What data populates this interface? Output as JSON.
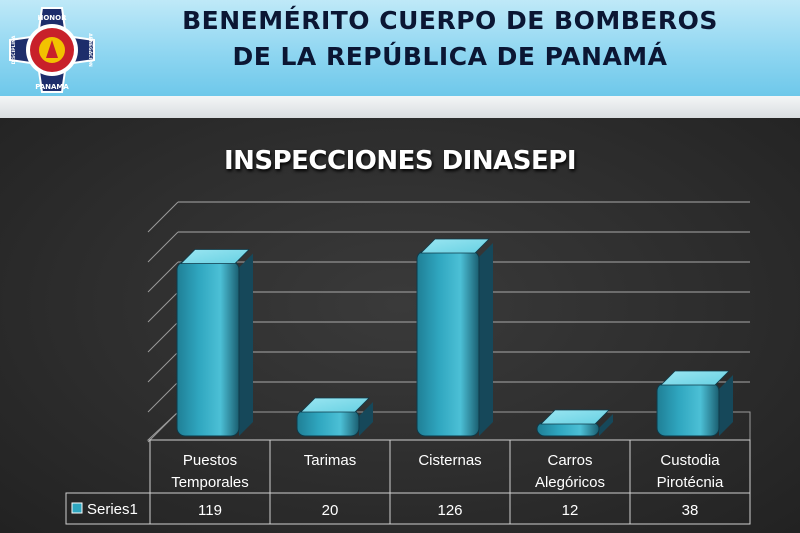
{
  "header": {
    "line1": "BENEMÉRITO CUERPO DE BOMBEROS",
    "line2": "DE LA REPÚBLICA DE PANAMÁ",
    "logo_text_top": "HONOR",
    "logo_text_bottom": "PANAMA",
    "logo_text_left": "DISCIPLINA",
    "logo_text_right": "ABNEGACIÓN"
  },
  "colors": {
    "header_bg": "#8fd6f1",
    "title_text": "#0b1633",
    "bar_fill": "#2fa6bf",
    "bar_top": "#66d0e2",
    "background": "#2e2e2e"
  },
  "chart_data": {
    "type": "bar",
    "title": "INSPECCIONES DINASEPI",
    "categories": [
      [
        "Puestos",
        "Temporales"
      ],
      [
        "Tarimas"
      ],
      [
        "Cisternas"
      ],
      [
        "Carros",
        "Alegóricos"
      ],
      [
        "Custodia",
        "Pirotécnia"
      ]
    ],
    "series": [
      {
        "name": "Series1",
        "values": [
          119,
          20,
          126,
          12,
          38
        ]
      }
    ],
    "ylim": [
      0,
      140
    ],
    "grid": true,
    "legend": "data-table",
    "style": "3d-cylinder"
  }
}
